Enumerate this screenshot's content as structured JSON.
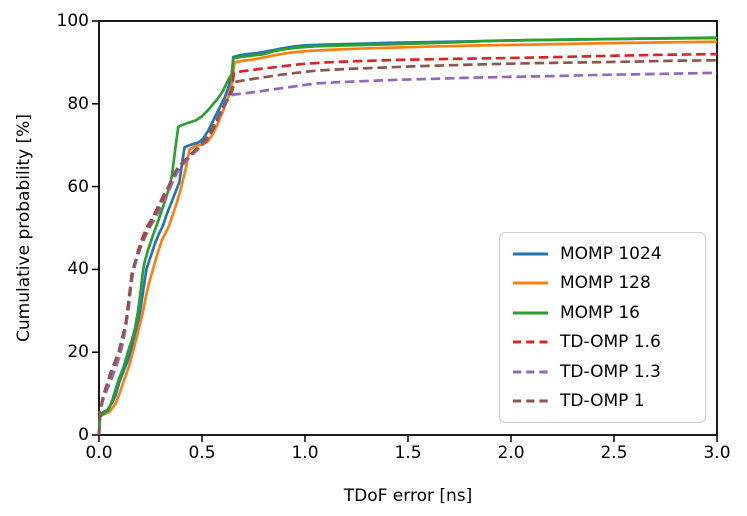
{
  "figure": {
    "background": "#ffffff",
    "frame_color": "#000000"
  },
  "chart_data": {
    "type": "line",
    "title": "",
    "xlabel": "TDoF error [ns]",
    "ylabel": "Cumulative probability [%]",
    "xlim": [
      0,
      3
    ],
    "ylim": [
      0,
      100
    ],
    "grid": false,
    "legend_position": "lower right inside",
    "x_ticks": [
      0,
      0.5,
      1.0,
      1.5,
      2.0,
      2.5,
      3.0
    ],
    "x_tick_labels": [
      "0.0",
      "0.5",
      "1.0",
      "1.5",
      "2.0",
      "2.5",
      "3.0"
    ],
    "y_ticks": [
      0,
      20,
      40,
      60,
      80,
      100
    ],
    "y_tick_labels": [
      "0",
      "20",
      "40",
      "60",
      "80",
      "100"
    ],
    "series": [
      {
        "name": "MOMP 1024",
        "color": "#1f77b4",
        "style": "solid",
        "points": [
          [
            0,
            0
          ],
          [
            0.005,
            4.5
          ],
          [
            0.02,
            5.5
          ],
          [
            0.04,
            6
          ],
          [
            0.06,
            7.5
          ],
          [
            0.08,
            9.5
          ],
          [
            0.1,
            13
          ],
          [
            0.12,
            15.5
          ],
          [
            0.14,
            18
          ],
          [
            0.16,
            21
          ],
          [
            0.18,
            25
          ],
          [
            0.2,
            30
          ],
          [
            0.215,
            35
          ],
          [
            0.23,
            40
          ],
          [
            0.25,
            43
          ],
          [
            0.27,
            46
          ],
          [
            0.29,
            48.5
          ],
          [
            0.31,
            50.5
          ],
          [
            0.33,
            53.5
          ],
          [
            0.35,
            56
          ],
          [
            0.37,
            58.5
          ],
          [
            0.39,
            61
          ],
          [
            0.4,
            64.5
          ],
          [
            0.415,
            69.5
          ],
          [
            0.45,
            70.2
          ],
          [
            0.48,
            70.6
          ],
          [
            0.505,
            71.5
          ],
          [
            0.53,
            73.5
          ],
          [
            0.55,
            75.5
          ],
          [
            0.57,
            77.5
          ],
          [
            0.59,
            79.5
          ],
          [
            0.61,
            81.5
          ],
          [
            0.625,
            83.5
          ],
          [
            0.635,
            85
          ],
          [
            0.645,
            87.5
          ],
          [
            0.652,
            91.3
          ],
          [
            0.68,
            91.7
          ],
          [
            0.72,
            92
          ],
          [
            0.76,
            92.2
          ],
          [
            0.8,
            92.5
          ],
          [
            0.84,
            92.9
          ],
          [
            0.88,
            93.3
          ],
          [
            0.95,
            93.9
          ],
          [
            1.0,
            94.1
          ],
          [
            1.1,
            94.3
          ],
          [
            1.25,
            94.5
          ],
          [
            1.4,
            94.7
          ],
          [
            1.6,
            94.9
          ],
          [
            1.8,
            95.1
          ],
          [
            2.0,
            95.3
          ],
          [
            2.3,
            95.5
          ],
          [
            2.6,
            95.7
          ],
          [
            3.0,
            95.9
          ]
        ]
      },
      {
        "name": "MOMP 128",
        "color": "#ff7f0e",
        "style": "solid",
        "points": [
          [
            0,
            0
          ],
          [
            0.005,
            4.5
          ],
          [
            0.02,
            5
          ],
          [
            0.05,
            5.5
          ],
          [
            0.08,
            7.5
          ],
          [
            0.1,
            10
          ],
          [
            0.12,
            13
          ],
          [
            0.145,
            16.5
          ],
          [
            0.17,
            21
          ],
          [
            0.19,
            25
          ],
          [
            0.21,
            29
          ],
          [
            0.23,
            34
          ],
          [
            0.25,
            38
          ],
          [
            0.265,
            40.5
          ],
          [
            0.285,
            44
          ],
          [
            0.305,
            47
          ],
          [
            0.325,
            49
          ],
          [
            0.34,
            50.5
          ],
          [
            0.36,
            53.5
          ],
          [
            0.38,
            56.5
          ],
          [
            0.4,
            60
          ],
          [
            0.42,
            64
          ],
          [
            0.44,
            69
          ],
          [
            0.47,
            69.8
          ],
          [
            0.5,
            70.2
          ],
          [
            0.525,
            70.8
          ],
          [
            0.55,
            72.5
          ],
          [
            0.575,
            75
          ],
          [
            0.6,
            78
          ],
          [
            0.615,
            80
          ],
          [
            0.63,
            82
          ],
          [
            0.645,
            84.5
          ],
          [
            0.658,
            90
          ],
          [
            0.7,
            90.4
          ],
          [
            0.75,
            90.7
          ],
          [
            0.8,
            91.2
          ],
          [
            0.86,
            91.8
          ],
          [
            0.92,
            92.3
          ],
          [
            1.0,
            92.7
          ],
          [
            1.1,
            93
          ],
          [
            1.25,
            93.3
          ],
          [
            1.45,
            93.6
          ],
          [
            1.65,
            93.9
          ],
          [
            1.85,
            94.1
          ],
          [
            2.1,
            94.3
          ],
          [
            2.4,
            94.6
          ],
          [
            2.7,
            94.8
          ],
          [
            3.0,
            95
          ]
        ]
      },
      {
        "name": "MOMP 16",
        "color": "#2ca02c",
        "style": "solid",
        "points": [
          [
            0,
            0
          ],
          [
            0.005,
            4.5
          ],
          [
            0.02,
            5
          ],
          [
            0.045,
            6
          ],
          [
            0.065,
            8.5
          ],
          [
            0.08,
            11
          ],
          [
            0.1,
            14
          ],
          [
            0.12,
            16.5
          ],
          [
            0.14,
            20
          ],
          [
            0.16,
            23
          ],
          [
            0.175,
            26
          ],
          [
            0.19,
            30
          ],
          [
            0.2,
            34
          ],
          [
            0.212,
            39
          ],
          [
            0.22,
            41.5
          ],
          [
            0.24,
            45
          ],
          [
            0.26,
            48
          ],
          [
            0.275,
            50
          ],
          [
            0.29,
            52
          ],
          [
            0.31,
            55
          ],
          [
            0.33,
            58
          ],
          [
            0.345,
            60.5
          ],
          [
            0.355,
            63
          ],
          [
            0.365,
            67
          ],
          [
            0.375,
            71
          ],
          [
            0.385,
            74.5
          ],
          [
            0.41,
            75
          ],
          [
            0.44,
            75.5
          ],
          [
            0.47,
            76
          ],
          [
            0.5,
            77
          ],
          [
            0.53,
            78.5
          ],
          [
            0.555,
            80
          ],
          [
            0.58,
            81.5
          ],
          [
            0.6,
            83
          ],
          [
            0.62,
            85
          ],
          [
            0.635,
            86.5
          ],
          [
            0.645,
            87
          ],
          [
            0.652,
            91
          ],
          [
            0.7,
            91.4
          ],
          [
            0.75,
            91.7
          ],
          [
            0.8,
            92
          ],
          [
            0.85,
            92.7
          ],
          [
            0.9,
            93.2
          ],
          [
            0.97,
            93.6
          ],
          [
            1.05,
            93.9
          ],
          [
            1.2,
            94.1
          ],
          [
            1.35,
            94.3
          ],
          [
            1.5,
            94.5
          ],
          [
            1.7,
            94.8
          ],
          [
            1.9,
            95.2
          ],
          [
            2.1,
            95.4
          ],
          [
            2.4,
            95.6
          ],
          [
            2.7,
            95.8
          ],
          [
            3.0,
            96
          ]
        ]
      },
      {
        "name": "TD-OMP 1.6",
        "color": "#d62728",
        "style": "dashed",
        "points": [
          [
            0,
            0
          ],
          [
            0.005,
            5.5
          ],
          [
            0.02,
            9
          ],
          [
            0.04,
            11.5
          ],
          [
            0.06,
            14
          ],
          [
            0.08,
            17
          ],
          [
            0.1,
            20
          ],
          [
            0.115,
            23
          ],
          [
            0.13,
            27
          ],
          [
            0.14,
            31
          ],
          [
            0.15,
            35
          ],
          [
            0.16,
            39.5
          ],
          [
            0.175,
            41.5
          ],
          [
            0.19,
            44.5
          ],
          [
            0.21,
            47.5
          ],
          [
            0.23,
            50
          ],
          [
            0.26,
            52.5
          ],
          [
            0.29,
            55.5
          ],
          [
            0.32,
            58.5
          ],
          [
            0.345,
            60.5
          ],
          [
            0.37,
            63
          ],
          [
            0.4,
            65.5
          ],
          [
            0.43,
            67
          ],
          [
            0.46,
            68.5
          ],
          [
            0.49,
            69.5
          ],
          [
            0.52,
            71
          ],
          [
            0.55,
            73.5
          ],
          [
            0.58,
            76.5
          ],
          [
            0.6,
            78.5
          ],
          [
            0.62,
            81
          ],
          [
            0.635,
            82.5
          ],
          [
            0.645,
            83.5
          ],
          [
            0.655,
            87.5
          ],
          [
            0.7,
            87.9
          ],
          [
            0.78,
            88.4
          ],
          [
            0.88,
            89
          ],
          [
            0.98,
            89.6
          ],
          [
            1.1,
            90
          ],
          [
            1.25,
            90.3
          ],
          [
            1.45,
            90.6
          ],
          [
            1.65,
            90.8
          ],
          [
            1.9,
            91
          ],
          [
            2.15,
            91.2
          ],
          [
            2.4,
            91.5
          ],
          [
            2.7,
            91.8
          ],
          [
            3.0,
            92
          ]
        ]
      },
      {
        "name": "TD-OMP 1.3",
        "color": "#9467bd",
        "style": "dashed",
        "points": [
          [
            0,
            0
          ],
          [
            0.005,
            5.5
          ],
          [
            0.02,
            8.5
          ],
          [
            0.04,
            11
          ],
          [
            0.06,
            13.5
          ],
          [
            0.08,
            16
          ],
          [
            0.1,
            19
          ],
          [
            0.115,
            22
          ],
          [
            0.13,
            26
          ],
          [
            0.145,
            31
          ],
          [
            0.155,
            36
          ],
          [
            0.165,
            39
          ],
          [
            0.18,
            42
          ],
          [
            0.2,
            45
          ],
          [
            0.22,
            47.5
          ],
          [
            0.25,
            50.5
          ],
          [
            0.28,
            53
          ],
          [
            0.31,
            56
          ],
          [
            0.34,
            59
          ],
          [
            0.36,
            61.5
          ],
          [
            0.38,
            63.5
          ],
          [
            0.41,
            65.5
          ],
          [
            0.44,
            67
          ],
          [
            0.47,
            68.5
          ],
          [
            0.5,
            70
          ],
          [
            0.53,
            72
          ],
          [
            0.555,
            74.5
          ],
          [
            0.58,
            76.5
          ],
          [
            0.6,
            78.5
          ],
          [
            0.62,
            80.5
          ],
          [
            0.635,
            81.5
          ],
          [
            0.65,
            82.2
          ],
          [
            0.7,
            82.5
          ],
          [
            0.78,
            83
          ],
          [
            0.86,
            83.6
          ],
          [
            0.95,
            84.2
          ],
          [
            1.05,
            84.9
          ],
          [
            1.15,
            85.2
          ],
          [
            1.3,
            85.5
          ],
          [
            1.45,
            85.8
          ],
          [
            1.6,
            86
          ],
          [
            1.8,
            86.3
          ],
          [
            2.0,
            86.5
          ],
          [
            2.2,
            86.7
          ],
          [
            2.45,
            87
          ],
          [
            2.7,
            87.2
          ],
          [
            3.0,
            87.5
          ]
        ]
      },
      {
        "name": "TD-OMP 1",
        "color": "#8c564b",
        "style": "dashed",
        "points": [
          [
            0,
            0
          ],
          [
            0.005,
            5.5
          ],
          [
            0.02,
            9.5
          ],
          [
            0.04,
            12.5
          ],
          [
            0.055,
            15
          ],
          [
            0.075,
            17.5
          ],
          [
            0.095,
            20
          ],
          [
            0.11,
            23
          ],
          [
            0.125,
            26
          ],
          [
            0.14,
            30
          ],
          [
            0.15,
            34
          ],
          [
            0.158,
            38
          ],
          [
            0.17,
            41
          ],
          [
            0.19,
            44
          ],
          [
            0.21,
            46.5
          ],
          [
            0.235,
            49.5
          ],
          [
            0.26,
            52
          ],
          [
            0.29,
            55
          ],
          [
            0.32,
            58
          ],
          [
            0.35,
            61.5
          ],
          [
            0.375,
            64
          ],
          [
            0.4,
            65.5
          ],
          [
            0.43,
            67
          ],
          [
            0.46,
            68.5
          ],
          [
            0.49,
            70
          ],
          [
            0.52,
            71.5
          ],
          [
            0.55,
            74
          ],
          [
            0.575,
            76.5
          ],
          [
            0.6,
            79
          ],
          [
            0.615,
            80.5
          ],
          [
            0.63,
            81.5
          ],
          [
            0.645,
            83
          ],
          [
            0.66,
            85.3
          ],
          [
            0.72,
            85.8
          ],
          [
            0.8,
            86.4
          ],
          [
            0.88,
            87
          ],
          [
            0.96,
            87.5
          ],
          [
            1.05,
            88
          ],
          [
            1.2,
            88.4
          ],
          [
            1.35,
            88.7
          ],
          [
            1.5,
            89
          ],
          [
            1.7,
            89.3
          ],
          [
            1.9,
            89.6
          ],
          [
            2.1,
            89.8
          ],
          [
            2.35,
            90
          ],
          [
            2.6,
            90.2
          ],
          [
            2.8,
            90.4
          ],
          [
            3.0,
            90.5
          ]
        ]
      }
    ]
  }
}
